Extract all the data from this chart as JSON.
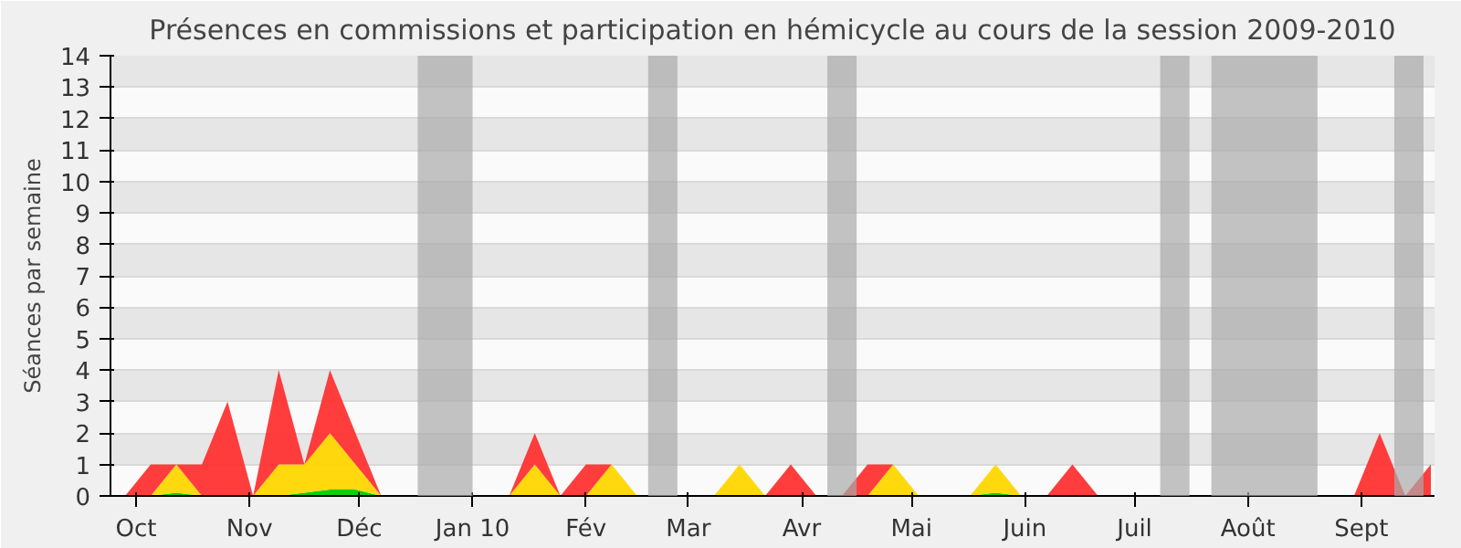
{
  "chart_data": {
    "type": "area",
    "stacked": true,
    "title": "Présences en commissions et participation en hémicycle au cours de la session 2009-2010",
    "ylabel": "Séances par semaine",
    "x": [
      "2009-09-28",
      "2009-10-05",
      "2009-10-12",
      "2009-10-19",
      "2009-10-26",
      "2009-11-02",
      "2009-11-09",
      "2009-11-16",
      "2009-11-23",
      "2009-11-30",
      "2009-12-07",
      "2009-12-14",
      "2009-12-21",
      "2009-12-28",
      "2010-01-04",
      "2010-01-11",
      "2010-01-18",
      "2010-01-25",
      "2010-02-01",
      "2010-02-08",
      "2010-02-15",
      "2010-02-22",
      "2010-03-01",
      "2010-03-08",
      "2010-03-15",
      "2010-03-22",
      "2010-03-29",
      "2010-04-05",
      "2010-04-12",
      "2010-04-19",
      "2010-04-26",
      "2010-05-03",
      "2010-05-10",
      "2010-05-17",
      "2010-05-24",
      "2010-05-31",
      "2010-06-07",
      "2010-06-14",
      "2010-06-21",
      "2010-06-28",
      "2010-07-05",
      "2010-07-12",
      "2010-07-19",
      "2010-07-26",
      "2010-08-02",
      "2010-08-09",
      "2010-08-16",
      "2010-08-23",
      "2010-08-30",
      "2010-09-06",
      "2010-09-13",
      "2010-09-20"
    ],
    "series": [
      {
        "color": "#00cc00",
        "values": [
          0,
          0,
          0.1,
          0,
          0,
          0,
          0,
          0.1,
          0.2,
          0.2,
          0,
          0,
          0,
          0,
          0,
          0,
          0,
          0,
          0,
          0,
          0,
          0,
          0,
          0,
          0,
          0,
          0,
          0,
          0,
          0,
          0,
          0,
          0,
          0,
          0.1,
          0,
          0,
          0,
          0,
          0,
          0,
          0,
          0,
          0,
          0,
          0,
          0,
          0,
          0,
          0,
          0,
          0
        ]
      },
      {
        "color": "#ffd700",
        "values": [
          0,
          0,
          0.9,
          0,
          0,
          0,
          1,
          0.9,
          1.8,
          0.8,
          0,
          0,
          0,
          0,
          0,
          0,
          1,
          0,
          0,
          1,
          0,
          0,
          0,
          0,
          1,
          0,
          0,
          0,
          0,
          0,
          1,
          0,
          0,
          0,
          0.9,
          0,
          0,
          0,
          0,
          0,
          0,
          0,
          0,
          0,
          0,
          0,
          0,
          0,
          0,
          0,
          0,
          0
        ]
      },
      {
        "color": "#ff3333",
        "values": [
          0,
          1,
          0,
          1,
          3,
          0,
          3,
          0,
          2,
          1,
          0,
          0,
          0,
          0,
          0,
          0,
          1,
          0,
          1,
          0,
          0,
          0,
          0,
          0,
          0,
          0,
          1,
          0,
          0,
          1,
          0,
          0,
          0,
          0,
          0,
          0,
          0,
          1,
          0,
          0,
          0,
          0,
          0,
          0,
          0,
          0,
          0,
          0,
          0,
          2,
          0,
          1
        ]
      }
    ],
    "xlim": [
      "2009-09-24",
      "2010-09-21"
    ],
    "xticks": [
      {
        "value": "2009-10-01",
        "label": "Oct"
      },
      {
        "value": "2009-11-01",
        "label": "Nov"
      },
      {
        "value": "2009-12-01",
        "label": "Déc"
      },
      {
        "value": "2010-01-01",
        "label": "Jan 10"
      },
      {
        "value": "2010-02-01",
        "label": "Fév"
      },
      {
        "value": "2010-03-01",
        "label": "Mar"
      },
      {
        "value": "2010-04-01",
        "label": "Avr"
      },
      {
        "value": "2010-05-01",
        "label": "Mai"
      },
      {
        "value": "2010-06-01",
        "label": "Juin"
      },
      {
        "value": "2010-07-01",
        "label": "Juil"
      },
      {
        "value": "2010-08-01",
        "label": "Août"
      },
      {
        "value": "2010-09-01",
        "label": "Sept"
      }
    ],
    "ylim": [
      0,
      14
    ],
    "yticks": [
      0,
      1,
      2,
      3,
      4,
      5,
      6,
      7,
      8,
      9,
      10,
      11,
      12,
      13,
      14
    ],
    "grid": "y",
    "bands": [
      {
        "axis": "x",
        "from": "2009-12-17",
        "to": "2010-01-01",
        "color": "#aaaaaa"
      },
      {
        "axis": "x",
        "from": "2010-02-18",
        "to": "2010-02-26",
        "color": "#aaaaaa"
      },
      {
        "axis": "x",
        "from": "2010-04-08",
        "to": "2010-04-16",
        "color": "#aaaaaa"
      },
      {
        "axis": "x",
        "from": "2010-07-08",
        "to": "2010-07-16",
        "color": "#aaaaaa"
      },
      {
        "axis": "x",
        "from": "2010-07-22",
        "to": "2010-08-20",
        "color": "#aaaaaa"
      },
      {
        "axis": "x",
        "from": "2010-09-10",
        "to": "2010-09-18",
        "color": "#aaaaaa"
      }
    ]
  }
}
